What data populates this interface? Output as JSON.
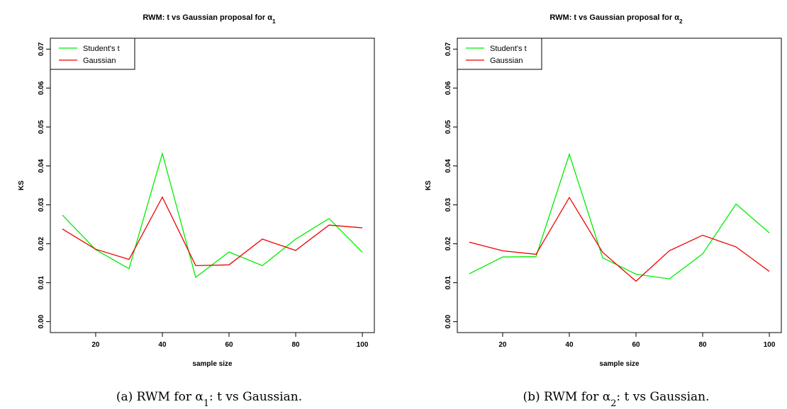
{
  "panels": [
    {
      "caption": "(a) RWM for α₁: t vs Gaussian.",
      "chart_data": {
        "type": "line",
        "title": "RWM: t vs Gaussian proposal for α₁",
        "xlabel": "sample size",
        "ylabel": "KS",
        "x": [
          10,
          20,
          30,
          40,
          50,
          60,
          70,
          80,
          90,
          100
        ],
        "xlim": [
          10,
          100
        ],
        "ylim": [
          0,
          0.07
        ],
        "xticks": [
          20,
          40,
          60,
          80,
          100
        ],
        "yticks": [
          0.0,
          0.01,
          0.02,
          0.03,
          0.04,
          0.05,
          0.06,
          0.07
        ],
        "ytick_labels": [
          "0.00",
          "0.01",
          "0.02",
          "0.03",
          "0.04",
          "0.05",
          "0.06",
          "0.07"
        ],
        "legend_position": "top-left",
        "series": [
          {
            "name": "Student's t",
            "color": "#00ee00",
            "values": [
              0.0274,
              0.0185,
              0.0136,
              0.0432,
              0.0114,
              0.0179,
              0.0144,
              0.0212,
              0.0265,
              0.0178
            ]
          },
          {
            "name": "Gaussian",
            "color": "#ee0000",
            "values": [
              0.0238,
              0.0186,
              0.016,
              0.032,
              0.0144,
              0.0146,
              0.0212,
              0.0183,
              0.0248,
              0.0241
            ]
          }
        ]
      }
    },
    {
      "caption": "(b) RWM for α₂: t vs Gaussian.",
      "chart_data": {
        "type": "line",
        "title": "RWM: t vs Gaussian proposal for α₂",
        "xlabel": "sample size",
        "ylabel": "KS",
        "x": [
          10,
          20,
          30,
          40,
          50,
          60,
          70,
          80,
          90,
          100
        ],
        "xlim": [
          10,
          100
        ],
        "ylim": [
          0,
          0.07
        ],
        "xticks": [
          20,
          40,
          60,
          80,
          100
        ],
        "yticks": [
          0.0,
          0.01,
          0.02,
          0.03,
          0.04,
          0.05,
          0.06,
          0.07
        ],
        "ytick_labels": [
          "0.00",
          "0.01",
          "0.02",
          "0.03",
          "0.04",
          "0.05",
          "0.06",
          "0.07"
        ],
        "legend_position": "top-left",
        "series": [
          {
            "name": "Student's t",
            "color": "#00ee00",
            "values": [
              0.0123,
              0.0166,
              0.0167,
              0.043,
              0.0164,
              0.0122,
              0.011,
              0.0174,
              0.0302,
              0.0228
            ]
          },
          {
            "name": "Gaussian",
            "color": "#ee0000",
            "values": [
              0.0204,
              0.0182,
              0.0173,
              0.0319,
              0.0178,
              0.0104,
              0.0182,
              0.0222,
              0.0192,
              0.0129
            ]
          }
        ]
      }
    }
  ]
}
